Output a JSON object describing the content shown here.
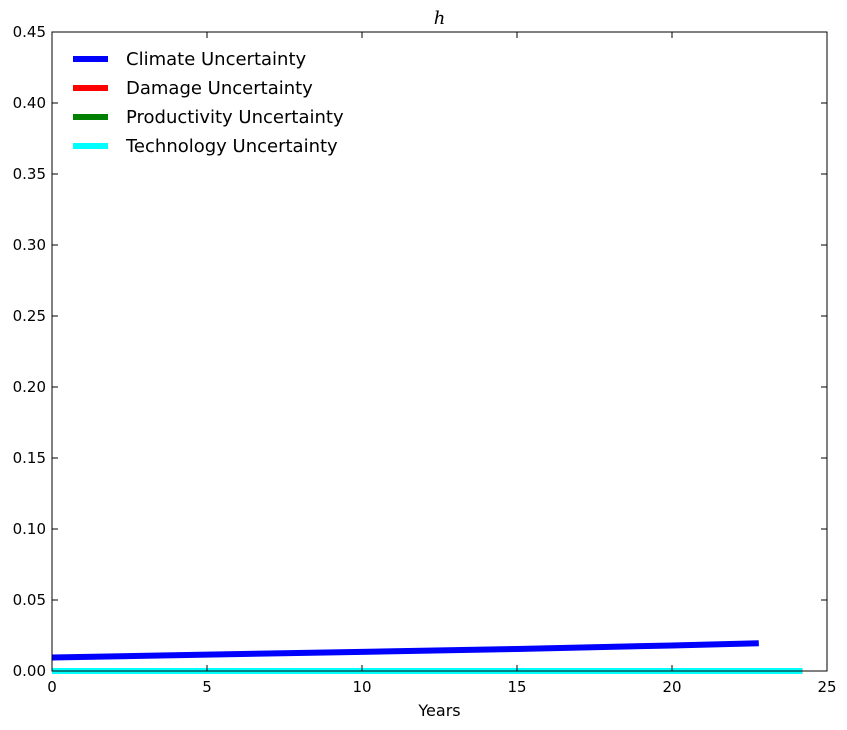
{
  "chart_data": {
    "type": "line",
    "title": "h",
    "xlabel": "Years",
    "ylabel": "",
    "xlim": [
      0,
      25
    ],
    "ylim": [
      0,
      0.45
    ],
    "xticks": [
      0,
      5,
      10,
      15,
      20,
      25
    ],
    "yticks": [
      0.0,
      0.05,
      0.1,
      0.15,
      0.2,
      0.25,
      0.3,
      0.35,
      0.4,
      0.45
    ],
    "xtick_labels": [
      "0",
      "5",
      "10",
      "15",
      "20",
      "25"
    ],
    "ytick_labels": [
      "0.00",
      "0.05",
      "0.10",
      "0.15",
      "0.20",
      "0.25",
      "0.30",
      "0.35",
      "0.40",
      "0.45"
    ],
    "grid": false,
    "legend_position": "top-left",
    "series": [
      {
        "name": "Climate Uncertainty",
        "color": "#0000ff",
        "x": [
          0,
          5,
          10,
          15,
          20,
          22.8
        ],
        "y": [
          0.0095,
          0.0115,
          0.0135,
          0.0155,
          0.018,
          0.0195
        ]
      },
      {
        "name": "Damage Uncertainty",
        "color": "#ff0000",
        "x": [
          0,
          5,
          10,
          15,
          20,
          24.2
        ],
        "y": [
          0.0,
          0.0,
          0.0,
          0.0,
          0.0,
          0.0
        ]
      },
      {
        "name": "Productivity Uncertainty",
        "color": "#008000",
        "x": [
          0,
          5,
          10,
          15,
          20,
          24.2
        ],
        "y": [
          0.0,
          0.0,
          0.0,
          0.0,
          0.0,
          0.0
        ]
      },
      {
        "name": "Technology Uncertainty",
        "color": "#00ffff",
        "x": [
          0,
          5,
          10,
          15,
          20,
          24.2
        ],
        "y": [
          0.0,
          0.0,
          0.0,
          0.0,
          0.0,
          0.0
        ]
      }
    ]
  }
}
